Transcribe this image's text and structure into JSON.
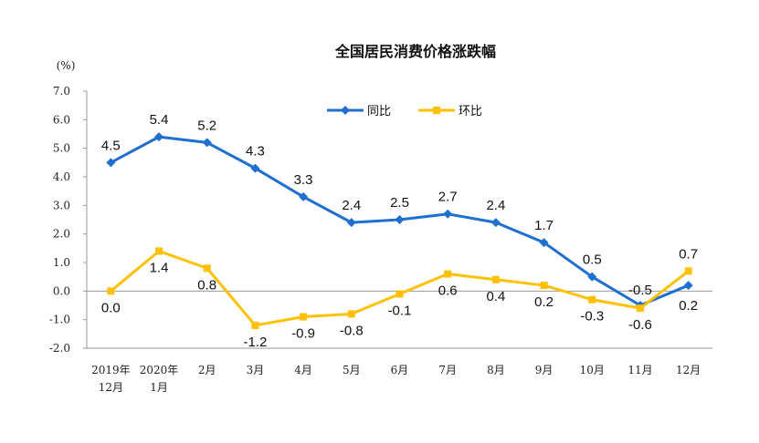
{
  "chart_data": {
    "type": "line",
    "title": "全国居民消费价格涨跌幅",
    "unit_label": "(%)",
    "ylim": [
      -2.0,
      7.0
    ],
    "yticks": [
      "7.0",
      "6.0",
      "5.0",
      "4.0",
      "3.0",
      "2.0",
      "1.0",
      "0.0",
      "-1.0",
      "-2.0"
    ],
    "categories": [
      [
        "2019年",
        "12月"
      ],
      [
        "2020年",
        "1月"
      ],
      [
        "2月"
      ],
      [
        "3月"
      ],
      [
        "4月"
      ],
      [
        "5月"
      ],
      [
        "6月"
      ],
      [
        "7月"
      ],
      [
        "8月"
      ],
      [
        "9月"
      ],
      [
        "10月"
      ],
      [
        "11月"
      ],
      [
        "12月"
      ]
    ],
    "series": [
      {
        "name": "同比",
        "color": "#1F6FD0",
        "marker": "diamond",
        "values": [
          4.5,
          5.4,
          5.2,
          4.3,
          3.3,
          2.4,
          2.5,
          2.7,
          2.4,
          1.7,
          0.5,
          -0.5,
          0.2
        ],
        "labels": [
          "4.5",
          "5.4",
          "5.2",
          "4.3",
          "3.3",
          "2.4",
          "2.5",
          "2.7",
          "2.4",
          "1.7",
          "0.5",
          "-0.5",
          "0.2"
        ]
      },
      {
        "name": "环比",
        "color": "#FFC000",
        "marker": "square",
        "values": [
          0.0,
          1.4,
          0.8,
          -1.2,
          -0.9,
          -0.8,
          -0.1,
          0.6,
          0.4,
          0.2,
          -0.3,
          -0.6,
          0.7
        ],
        "labels": [
          "0.0",
          "1.4",
          "0.8",
          "-1.2",
          "-0.9",
          "-0.8",
          "-0.1",
          "0.6",
          "0.4",
          "0.2",
          "-0.3",
          "-0.6",
          "0.7"
        ]
      }
    ],
    "legend_position": "top-center",
    "grid": false
  }
}
